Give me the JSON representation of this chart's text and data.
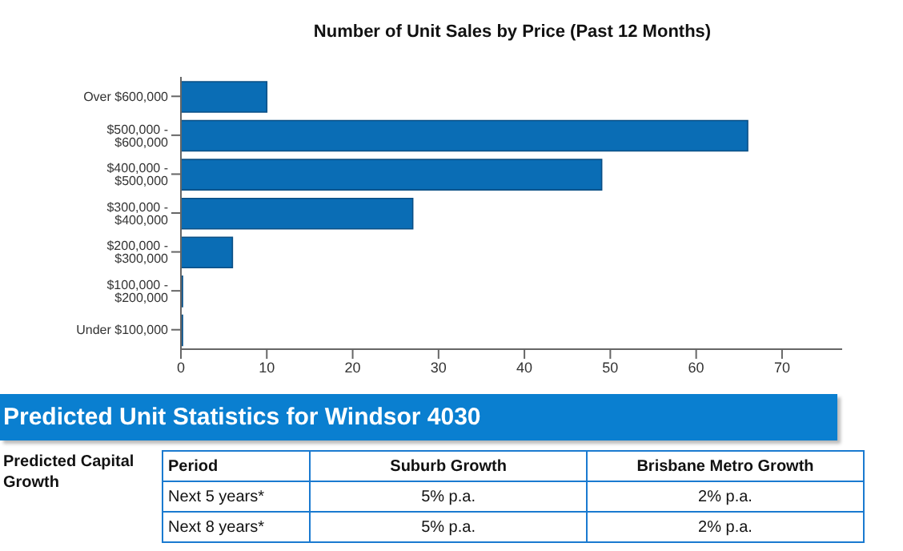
{
  "chart_data": [
    {
      "type": "bar",
      "title": "Number of Unit Sales by Price (Past 12 Months)",
      "orientation": "horizontal",
      "categories": [
        "Over $600,000",
        "$500,000 - $600,000",
        "$400,000 - $500,000",
        "$300,000 - $400,000",
        "$200,000 - $300,000",
        "$100,000 - $200,000",
        "Under $100,000"
      ],
      "values": [
        10,
        66,
        49,
        27,
        6,
        0,
        0
      ],
      "color": "#0a6db5",
      "xlim": [
        0,
        77
      ],
      "xticks": [
        0,
        10,
        20,
        30,
        40,
        50,
        60,
        70
      ],
      "grid": false,
      "legend": false
    },
    {
      "type": "other",
      "title": "Predicted Unit Statistics for Windsor 4030",
      "annotations": [
        "Predicted Capital Growth",
        "Period",
        "Suburb Growth",
        "Brisbane Metro Growth",
        "Next 5 years*",
        "5% p.a.",
        "2% p.a.",
        "Next 8 years*",
        "5% p.a.",
        "2% p.a."
      ]
    }
  ]
}
